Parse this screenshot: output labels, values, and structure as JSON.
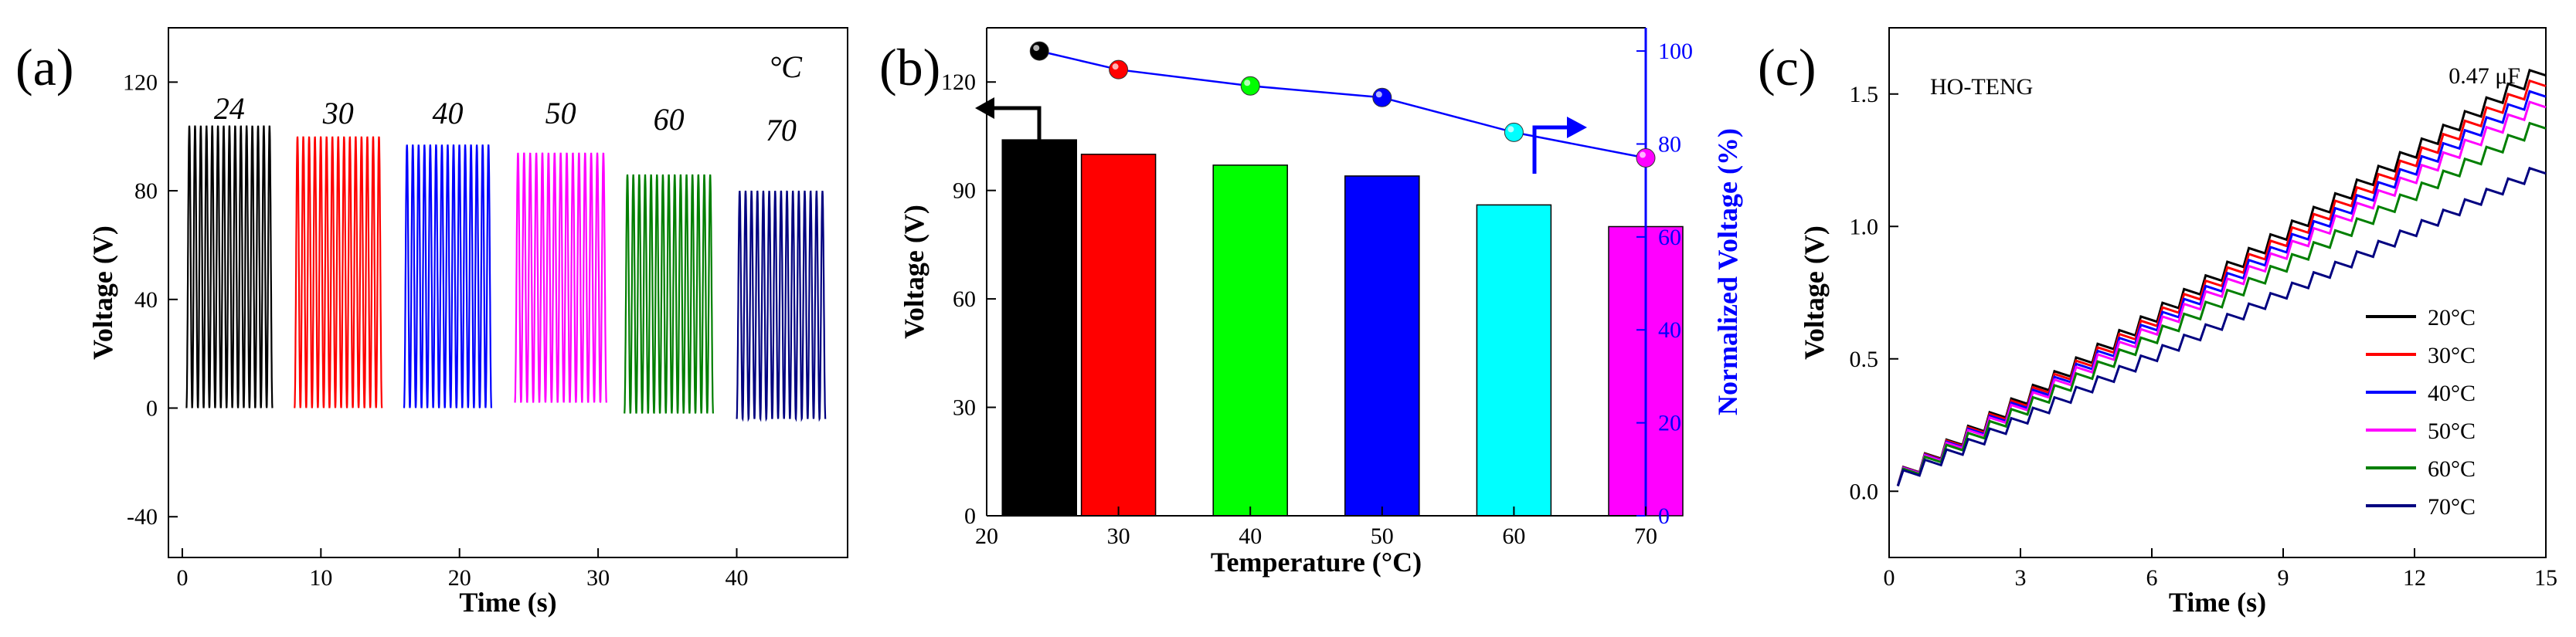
{
  "chart_data": [
    {
      "panel_label": "(a)",
      "type": "line",
      "corner_label": "°C",
      "xlabel": "Time (s)",
      "ylabel": "Voltage (V)",
      "xlim": [
        -1,
        48
      ],
      "ylim": [
        -55,
        140
      ],
      "xticks": [
        "0",
        "10",
        "20",
        "30",
        "40"
      ],
      "yticks": [
        "-40",
        "0",
        "40",
        "80",
        "120"
      ],
      "series": [
        {
          "name": "24",
          "color": "#000000",
          "t_start": 0.3,
          "t_end": 6.5,
          "cycles": 15,
          "max": 104,
          "min": 0
        },
        {
          "name": "30",
          "color": "#ff0000",
          "t_start": 8.1,
          "t_end": 14.4,
          "cycles": 15,
          "max": 100,
          "min": 0
        },
        {
          "name": "40",
          "color": "#0000ff",
          "t_start": 16.0,
          "t_end": 22.3,
          "cycles": 15,
          "max": 97,
          "min": 0
        },
        {
          "name": "50",
          "color": "#ff00ff",
          "t_start": 24.0,
          "t_end": 30.6,
          "cycles": 15,
          "max": 94,
          "min": 2
        },
        {
          "name": "60",
          "color": "#007f00",
          "t_start": 31.9,
          "t_end": 38.3,
          "cycles": 15,
          "max": 86,
          "min": -2
        },
        {
          "name": "70",
          "color": "#000080",
          "t_start": 40.0,
          "t_end": 46.4,
          "cycles": 15,
          "max": 80,
          "min": -4
        }
      ]
    },
    {
      "panel_label": "(b)",
      "type": "bar",
      "xlabel": "Temperature (°C)",
      "ylabel": "Voltage (V)",
      "y2label": "Normalized Voltage (%)",
      "xlim": [
        20,
        70
      ],
      "ylim": [
        0,
        135
      ],
      "y2lim": [
        0,
        105
      ],
      "xticks": [
        "20",
        "30",
        "40",
        "50",
        "60",
        "70"
      ],
      "yticks": [
        "0",
        "30",
        "60",
        "90",
        "120"
      ],
      "y2ticks": [
        "0",
        "20",
        "40",
        "60",
        "80",
        "100"
      ],
      "categories": [
        "24",
        "30",
        "40",
        "50",
        "60",
        "70"
      ],
      "x": [
        24,
        30,
        40,
        50,
        60,
        70
      ],
      "values": [
        104,
        100,
        97,
        94,
        86,
        80
      ],
      "normalized": [
        100,
        96,
        92.5,
        90,
        82.5,
        77
      ],
      "colors": [
        "#000000",
        "#ff0000",
        "#00ff00",
        "#0000ff",
        "#00ffff",
        "#ff00ff"
      ],
      "line_color": "#0000ff",
      "y2_color": "#0000ff"
    },
    {
      "panel_label": "(c)",
      "type": "line",
      "annotation_left": "HO-TENG",
      "annotation_right": "0.47 μF",
      "xlabel": "Time (s)",
      "ylabel": "Voltage (V)",
      "xlim": [
        0,
        15
      ],
      "ylim": [
        -0.25,
        1.75
      ],
      "xticks": [
        "0",
        "3",
        "6",
        "9",
        "12",
        "15"
      ],
      "yticks": [
        "0.0",
        "0.5",
        "1.0",
        "1.5"
      ],
      "legend_position": "lower-right",
      "series": [
        {
          "name": "20°C",
          "color": "#000000",
          "end_value": 1.57
        },
        {
          "name": "30°C",
          "color": "#ff0000",
          "end_value": 1.53
        },
        {
          "name": "40°C",
          "color": "#0000ff",
          "end_value": 1.49
        },
        {
          "name": "50°C",
          "color": "#ff00ff",
          "end_value": 1.45
        },
        {
          "name": "60°C",
          "color": "#007f00",
          "end_value": 1.37
        },
        {
          "name": "70°C",
          "color": "#000080",
          "end_value": 1.2
        }
      ]
    }
  ]
}
